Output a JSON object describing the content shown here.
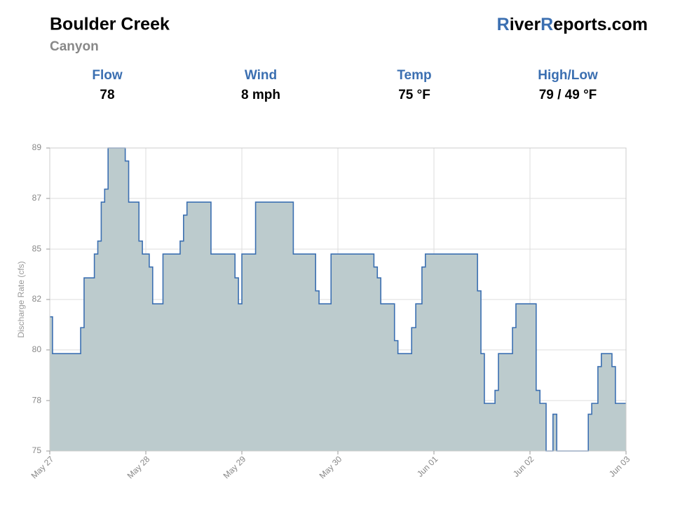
{
  "header": {
    "title": "Boulder Creek",
    "subtitle": "Canyon",
    "brand": [
      "R",
      "iver",
      "R",
      "eports.com"
    ]
  },
  "stats": [
    {
      "label": "Flow",
      "value": "78"
    },
    {
      "label": "Wind",
      "value": "8 mph"
    },
    {
      "label": "Temp",
      "value": "75 °F"
    },
    {
      "label": "High/Low",
      "value": "79 / 49 °F"
    }
  ],
  "chart_data": {
    "type": "step-area",
    "ylabel": "Discharge Rate (cfs)",
    "color": "#3b6fb1",
    "fill": "#bccbcd",
    "grid": true,
    "xlim": [
      0,
      168
    ],
    "xticks": [
      {
        "value": 0,
        "label": "May 27"
      },
      {
        "value": 28,
        "label": "May 28"
      },
      {
        "value": 56,
        "label": "May 29"
      },
      {
        "value": 84,
        "label": "May 30"
      },
      {
        "value": 112,
        "label": "Jun 01"
      },
      {
        "value": 140,
        "label": "Jun 02"
      },
      {
        "value": 168,
        "label": "Jun 03"
      }
    ],
    "ylim": [
      75.2,
      89.2
    ],
    "yticks": [
      {
        "value": 75.2,
        "label": "75"
      },
      {
        "value": 77.53,
        "label": "78"
      },
      {
        "value": 79.87,
        "label": "80"
      },
      {
        "value": 82.2,
        "label": "82"
      },
      {
        "value": 84.53,
        "label": "85"
      },
      {
        "value": 86.87,
        "label": "87"
      },
      {
        "value": 89.2,
        "label": "89"
      }
    ],
    "x": [
      0,
      0.8,
      9,
      10,
      13,
      14,
      15,
      16,
      17,
      22,
      23,
      26,
      27,
      29,
      30,
      33,
      38,
      39,
      40,
      47,
      54,
      55,
      56,
      60,
      71,
      77.5,
      78.5,
      82,
      94.5,
      95.5,
      96.5,
      100.5,
      101.5,
      105.5,
      106.7,
      108.5,
      109.5,
      124.7,
      125.7,
      126.7,
      129.8,
      130.8,
      134.9,
      135.9,
      141.8,
      142.9,
      144.7,
      146.7,
      147.8,
      157,
      158,
      159.8,
      160.8,
      163.9,
      164.9,
      168
    ],
    "values": [
      81.4,
      79.7,
      80.9,
      83.2,
      84.3,
      84.9,
      86.7,
      87.3,
      89.2,
      88.6,
      86.7,
      84.9,
      84.3,
      83.7,
      82.0,
      84.3,
      84.9,
      86.1,
      86.7,
      84.3,
      83.2,
      82.0,
      84.3,
      86.7,
      84.3,
      82.6,
      82.0,
      84.3,
      83.7,
      83.2,
      82.0,
      80.3,
      79.7,
      80.9,
      82.0,
      83.7,
      84.3,
      82.6,
      79.7,
      77.4,
      78.0,
      79.7,
      80.9,
      82.0,
      78.0,
      77.4,
      75.2,
      76.9,
      75.2,
      76.9,
      77.4,
      79.1,
      79.7,
      79.1,
      77.4,
      77.4
    ]
  }
}
